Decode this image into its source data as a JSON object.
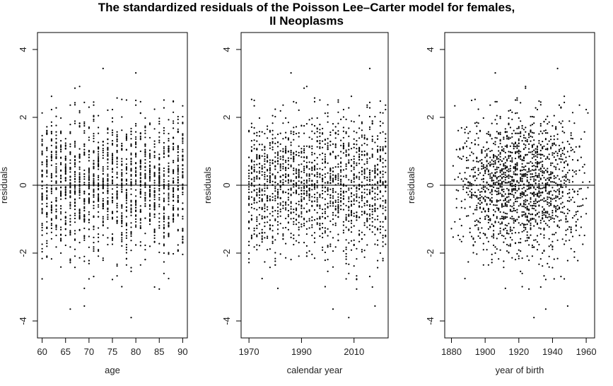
{
  "title_line1": "The standardized residuals of the Poisson Lee–Carter model for females,",
  "title_line2": "II Neoplasms",
  "chart_data": [
    {
      "type": "scatter",
      "xlabel": "age",
      "ylabel": "residuals",
      "xlim": [
        59,
        91
      ],
      "ylim": [
        -4.5,
        4.5
      ],
      "xticks": [
        60,
        65,
        70,
        75,
        80,
        85,
        90
      ],
      "yticks": [
        -4,
        -2,
        0,
        2,
        4
      ],
      "hline": 0,
      "x_values": "integer ages 60 to 90",
      "series": [
        {
          "y_min": -3.9,
          "y_max": 4.2,
          "approx_points": 1700
        }
      ]
    },
    {
      "type": "scatter",
      "xlabel": "calendar year",
      "ylabel": "residuals",
      "xlim": [
        1967,
        2023
      ],
      "ylim": [
        -4.5,
        4.5
      ],
      "xticks": [
        1970,
        1990,
        2010
      ],
      "yticks": [
        -4,
        -2,
        0,
        2,
        4
      ],
      "hline": 0,
      "x_values": "calendar years 1970 to 2022",
      "series": [
        {
          "y_min": -3.9,
          "y_max": 4.2,
          "approx_points": 1700
        }
      ]
    },
    {
      "type": "scatter",
      "xlabel": "year of birth",
      "ylabel": "residuals",
      "xlim": [
        1876,
        1965
      ],
      "ylim": [
        -4.5,
        4.5
      ],
      "xticks": [
        1880,
        1900,
        1920,
        1940,
        1960
      ],
      "yticks": [
        -4,
        -2,
        0,
        2,
        4
      ],
      "hline": 0,
      "x_values": "birth cohorts 1880 to 1962",
      "series": [
        {
          "y_min": -3.9,
          "y_max": 4.2,
          "approx_points": 1700
        }
      ]
    }
  ]
}
